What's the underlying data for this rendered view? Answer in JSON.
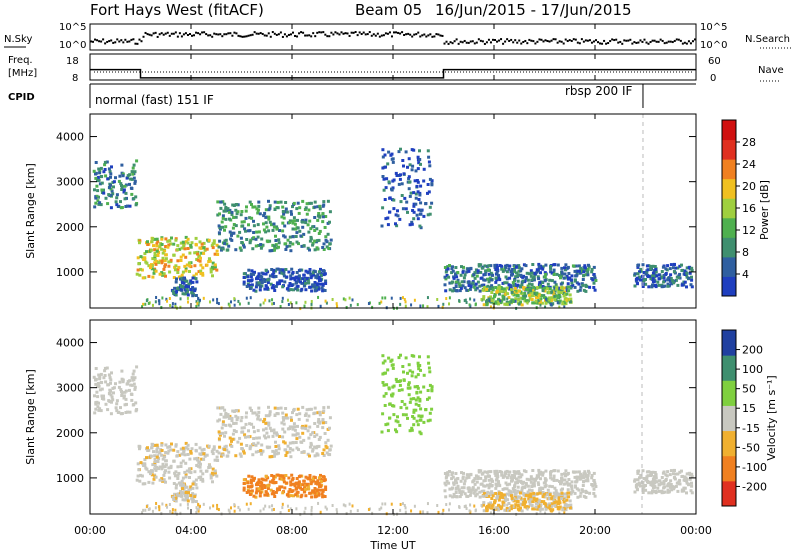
{
  "header": {
    "title": "Fort Hays West (fitACF)",
    "beam": "Beam 05",
    "dates": "16/Jun/2015 - 17/Jun/2015"
  },
  "noise_panel": {
    "left_label": "N.Sky",
    "right_label": "N.Search",
    "y_ticks_left": [
      "10^5",
      "10^0"
    ],
    "y_ticks_right": [
      "10^5",
      "10^0"
    ]
  },
  "freq_panel": {
    "left_label_line1": "Freq.",
    "left_label_line2": "[MHz]",
    "right_label": "Nave",
    "y_ticks_left": [
      "18",
      "8"
    ],
    "y_ticks_right": [
      "60",
      "0"
    ]
  },
  "cpid_panel": {
    "label": "CPID",
    "mode1": "normal (fast) 151 IF",
    "mode2": "rbsp 200 IF"
  },
  "power_panel": {
    "ylabel": "Slant Range [km]",
    "y_ticks": [
      "1000",
      "2000",
      "3000",
      "4000"
    ],
    "colorbar_label": "Power [dB]",
    "colorbar_ticks": [
      "4",
      "8",
      "12",
      "16",
      "20",
      "24",
      "28"
    ]
  },
  "velocity_panel": {
    "ylabel": "Slant Range [km]",
    "y_ticks": [
      "1000",
      "2000",
      "3000",
      "4000"
    ],
    "colorbar_label": "Velocity [m s⁻¹]",
    "colorbar_ticks": [
      "-200",
      "-100",
      "-50",
      "-15",
      "15",
      "50",
      "100",
      "200"
    ]
  },
  "x_axis": {
    "label": "Time UT",
    "ticks": [
      "00:00",
      "04:00",
      "08:00",
      "12:00",
      "16:00",
      "20:00",
      "00:00"
    ]
  },
  "chart_data": {
    "type": "heatmap",
    "x_range_hours": [
      0,
      24
    ],
    "y_range_km": [
      200,
      4500
    ],
    "power_colors": [
      "#1f3fbf",
      "#2f5fa0",
      "#3f8f6f",
      "#4fb04f",
      "#9fcf3f",
      "#f0c020",
      "#f08020",
      "#e03020",
      "#d01010"
    ],
    "velocity_colors": [
      "#2040a0",
      "#3f8f6f",
      "#7fcf3f",
      "#c8c8c0",
      "#f0b030",
      "#f08020",
      "#e03020"
    ],
    "regions": [
      {
        "t0": 0.1,
        "t1": 1.8,
        "r0": 2450,
        "r1": 3500,
        "power": 10,
        "velocity": 0
      },
      {
        "t0": 1.8,
        "t1": 5.0,
        "r0": 900,
        "r1": 1800,
        "power": 22,
        "velocity": -5
      },
      {
        "t0": 5.0,
        "t1": 9.5,
        "r0": 1500,
        "r1": 2600,
        "power": 12,
        "velocity": -5
      },
      {
        "t0": 6.0,
        "t1": 9.3,
        "r0": 600,
        "r1": 1100,
        "power": 6,
        "velocity": -60
      },
      {
        "t0": 3.2,
        "t1": 4.2,
        "r0": 500,
        "r1": 900,
        "power": 8,
        "velocity": -5
      },
      {
        "t0": 11.5,
        "t1": 13.5,
        "r0": 2000,
        "r1": 3800,
        "power": 6,
        "velocity": 30
      },
      {
        "t0": 14.0,
        "t1": 20.0,
        "r0": 600,
        "r1": 1200,
        "power": 9,
        "velocity": 0
      },
      {
        "t0": 21.5,
        "t1": 23.8,
        "r0": 700,
        "r1": 1200,
        "power": 8,
        "velocity": 0
      },
      {
        "t0": 15.5,
        "t1": 19.0,
        "r0": 300,
        "r1": 700,
        "power": 18,
        "velocity": -20
      }
    ],
    "cpid_change_hour": 21.9,
    "freq_steps": [
      {
        "from": 0,
        "to": 2.0,
        "freq": 12
      },
      {
        "from": 2.0,
        "to": 14.0,
        "freq": 8.8
      },
      {
        "from": 14.0,
        "to": 24,
        "freq": 12
      }
    ]
  }
}
